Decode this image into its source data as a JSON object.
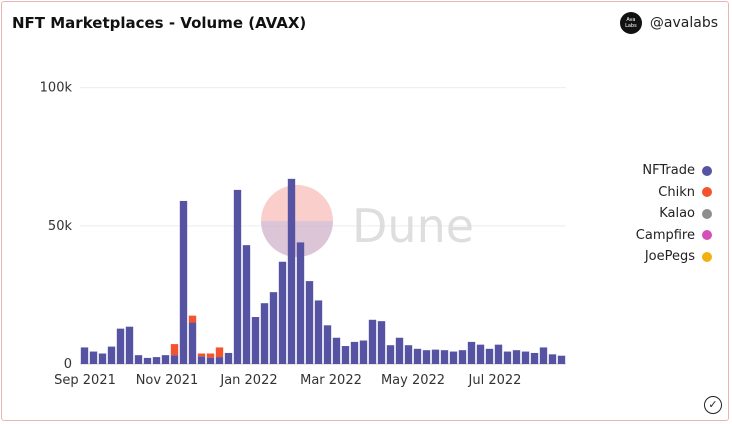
{
  "header": {
    "title": "NFT Marketplaces - Volume (AVAX)",
    "brand_name": "@avalabs",
    "brand_logo_text": "Ava Labs",
    "watermark": "Dune"
  },
  "chart_data": {
    "type": "bar",
    "stacked": true,
    "x_tick_labels": [
      "Sep 2021",
      "Nov 2021",
      "Jan 2022",
      "Mar 2022",
      "May 2022",
      "Jul 2022"
    ],
    "y_tick_labels": [
      "0",
      "50k",
      "100k"
    ],
    "ylim": [
      0,
      110000
    ],
    "legend_position": "right",
    "series": [
      {
        "name": "NFTrade",
        "color": "#5653a3",
        "values": [
          6000,
          4500,
          3800,
          6300,
          12800,
          13500,
          3200,
          2200,
          2500,
          3200,
          3200,
          59000,
          15000,
          2800,
          2300,
          2500,
          4000,
          63000,
          43000,
          17000,
          22000,
          26000,
          37000,
          67000,
          44000,
          30000,
          23000,
          14000,
          9500,
          6500,
          8000,
          8500,
          16000,
          15500,
          6800,
          9500,
          6800,
          5500,
          5000,
          5200,
          5000,
          4500,
          5000,
          8000,
          7000,
          5500,
          7000,
          4500,
          5000,
          4500,
          4000,
          6000,
          3500,
          3000
        ]
      },
      {
        "name": "Chikn",
        "color": "#f4532d",
        "values": [
          0,
          0,
          0,
          0,
          0,
          0,
          0,
          0,
          0,
          0,
          4000,
          0,
          2500,
          1000,
          1500,
          3500,
          0,
          0,
          0,
          0,
          0,
          0,
          0,
          0,
          0,
          0,
          0,
          0,
          0,
          0,
          0,
          0,
          0,
          0,
          0,
          0,
          0,
          0,
          0,
          0,
          0,
          0,
          0,
          0,
          0,
          0,
          0,
          0,
          0,
          0,
          0,
          0,
          0,
          0
        ]
      },
      {
        "name": "Kalao",
        "color": "#8e8e8e",
        "values": [
          0,
          0,
          0,
          0,
          0,
          0,
          0,
          0,
          0,
          0,
          0,
          0,
          0,
          0,
          0,
          0,
          0,
          0,
          0,
          0,
          0,
          0,
          0,
          0,
          0,
          0,
          0,
          0,
          0,
          0,
          0,
          0,
          0,
          0,
          0,
          0,
          0,
          0,
          0,
          0,
          0,
          0,
          0,
          0,
          0,
          0,
          0,
          0,
          0,
          0,
          0,
          0,
          0,
          0
        ]
      },
      {
        "name": "Campfire",
        "color": "#d44fb8",
        "values": [
          0,
          0,
          0,
          0,
          0,
          0,
          0,
          0,
          0,
          0,
          0,
          0,
          0,
          0,
          0,
          0,
          0,
          0,
          0,
          0,
          0,
          0,
          0,
          0,
          0,
          0,
          0,
          0,
          0,
          0,
          0,
          0,
          0,
          0,
          0,
          0,
          0,
          0,
          0,
          0,
          0,
          0,
          0,
          0,
          0,
          0,
          0,
          0,
          0,
          0,
          0,
          0,
          0,
          0
        ]
      },
      {
        "name": "JoePegs",
        "color": "#f3b111",
        "values": [
          0,
          0,
          0,
          0,
          0,
          0,
          0,
          0,
          0,
          0,
          0,
          0,
          0,
          0,
          0,
          0,
          0,
          0,
          0,
          0,
          0,
          0,
          0,
          0,
          0,
          0,
          0,
          0,
          0,
          0,
          0,
          0,
          0,
          0,
          0,
          0,
          0,
          0,
          0,
          0,
          0,
          0,
          0,
          0,
          0,
          0,
          0,
          0,
          0,
          0,
          0,
          0,
          0,
          0
        ]
      }
    ]
  }
}
